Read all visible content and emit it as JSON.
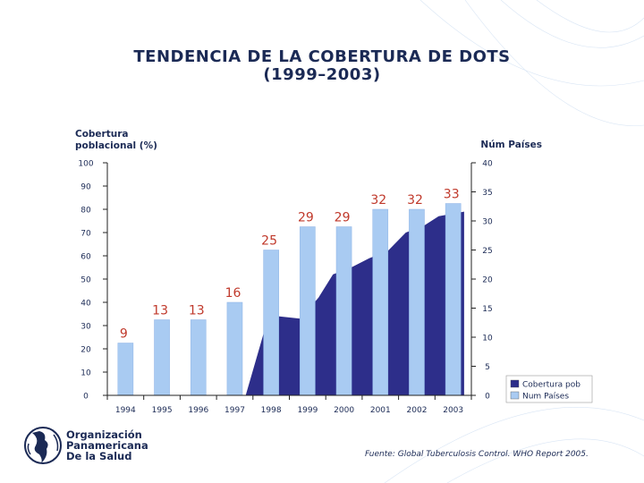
{
  "title_line1": "TENDENCIA DE LA COBERTURA DE DOTS",
  "title_line2": "(1999–2003)",
  "source": "Fuente: Global Tuberculosis Control. WHO Report 2005.",
  "organization": {
    "line1": "Organización",
    "line2": "Panamericana",
    "line3": "De la Salud"
  },
  "chart_data": {
    "type": "bar",
    "categories": [
      "1994",
      "1995",
      "1996",
      "1997",
      "1998",
      "1999",
      "2000",
      "2001",
      "2002",
      "2003"
    ],
    "y_left_label_line1": "Cobertura",
    "y_left_label_line2": "poblacional (%)",
    "y_right_label": "Núm Países",
    "y_left_range": [
      0,
      100
    ],
    "y_left_ticks": [
      "0",
      "10",
      "20",
      "30",
      "40",
      "50",
      "60",
      "70",
      "80",
      "90",
      "100"
    ],
    "y_right_range": [
      0,
      40
    ],
    "y_right_ticks": [
      "0",
      "5",
      "10",
      "15",
      "20",
      "25",
      "30",
      "35",
      "40"
    ],
    "series": [
      {
        "name": "Cobertura pob",
        "kind": "area",
        "axis": "left",
        "color": "#2d2e8a",
        "points": [
          {
            "x": 1997.3,
            "y": 0
          },
          {
            "x": 1997.8,
            "y": 27
          },
          {
            "x": 1998.2,
            "y": 34
          },
          {
            "x": 1998.8,
            "y": 33
          },
          {
            "x": 1999.3,
            "y": 42
          },
          {
            "x": 1999.7,
            "y": 52
          },
          {
            "x": 2000.2,
            "y": 55
          },
          {
            "x": 2000.7,
            "y": 59
          },
          {
            "x": 2001.2,
            "y": 62
          },
          {
            "x": 2001.7,
            "y": 70
          },
          {
            "x": 2002.2,
            "y": 73
          },
          {
            "x": 2002.6,
            "y": 77
          },
          {
            "x": 2003.3,
            "y": 79
          },
          {
            "x": 2003.3,
            "y": 0
          }
        ]
      },
      {
        "name": "Num Países",
        "kind": "bar",
        "axis": "right",
        "color": "#a9cbf2",
        "values": [
          9,
          13,
          13,
          16,
          25,
          29,
          29,
          32,
          32,
          33
        ],
        "labels": [
          "9",
          "13",
          "13",
          "16",
          "25",
          "29",
          "29",
          "32",
          "32",
          "33"
        ]
      }
    ],
    "legend_position": "bottom-right",
    "grid": false
  }
}
